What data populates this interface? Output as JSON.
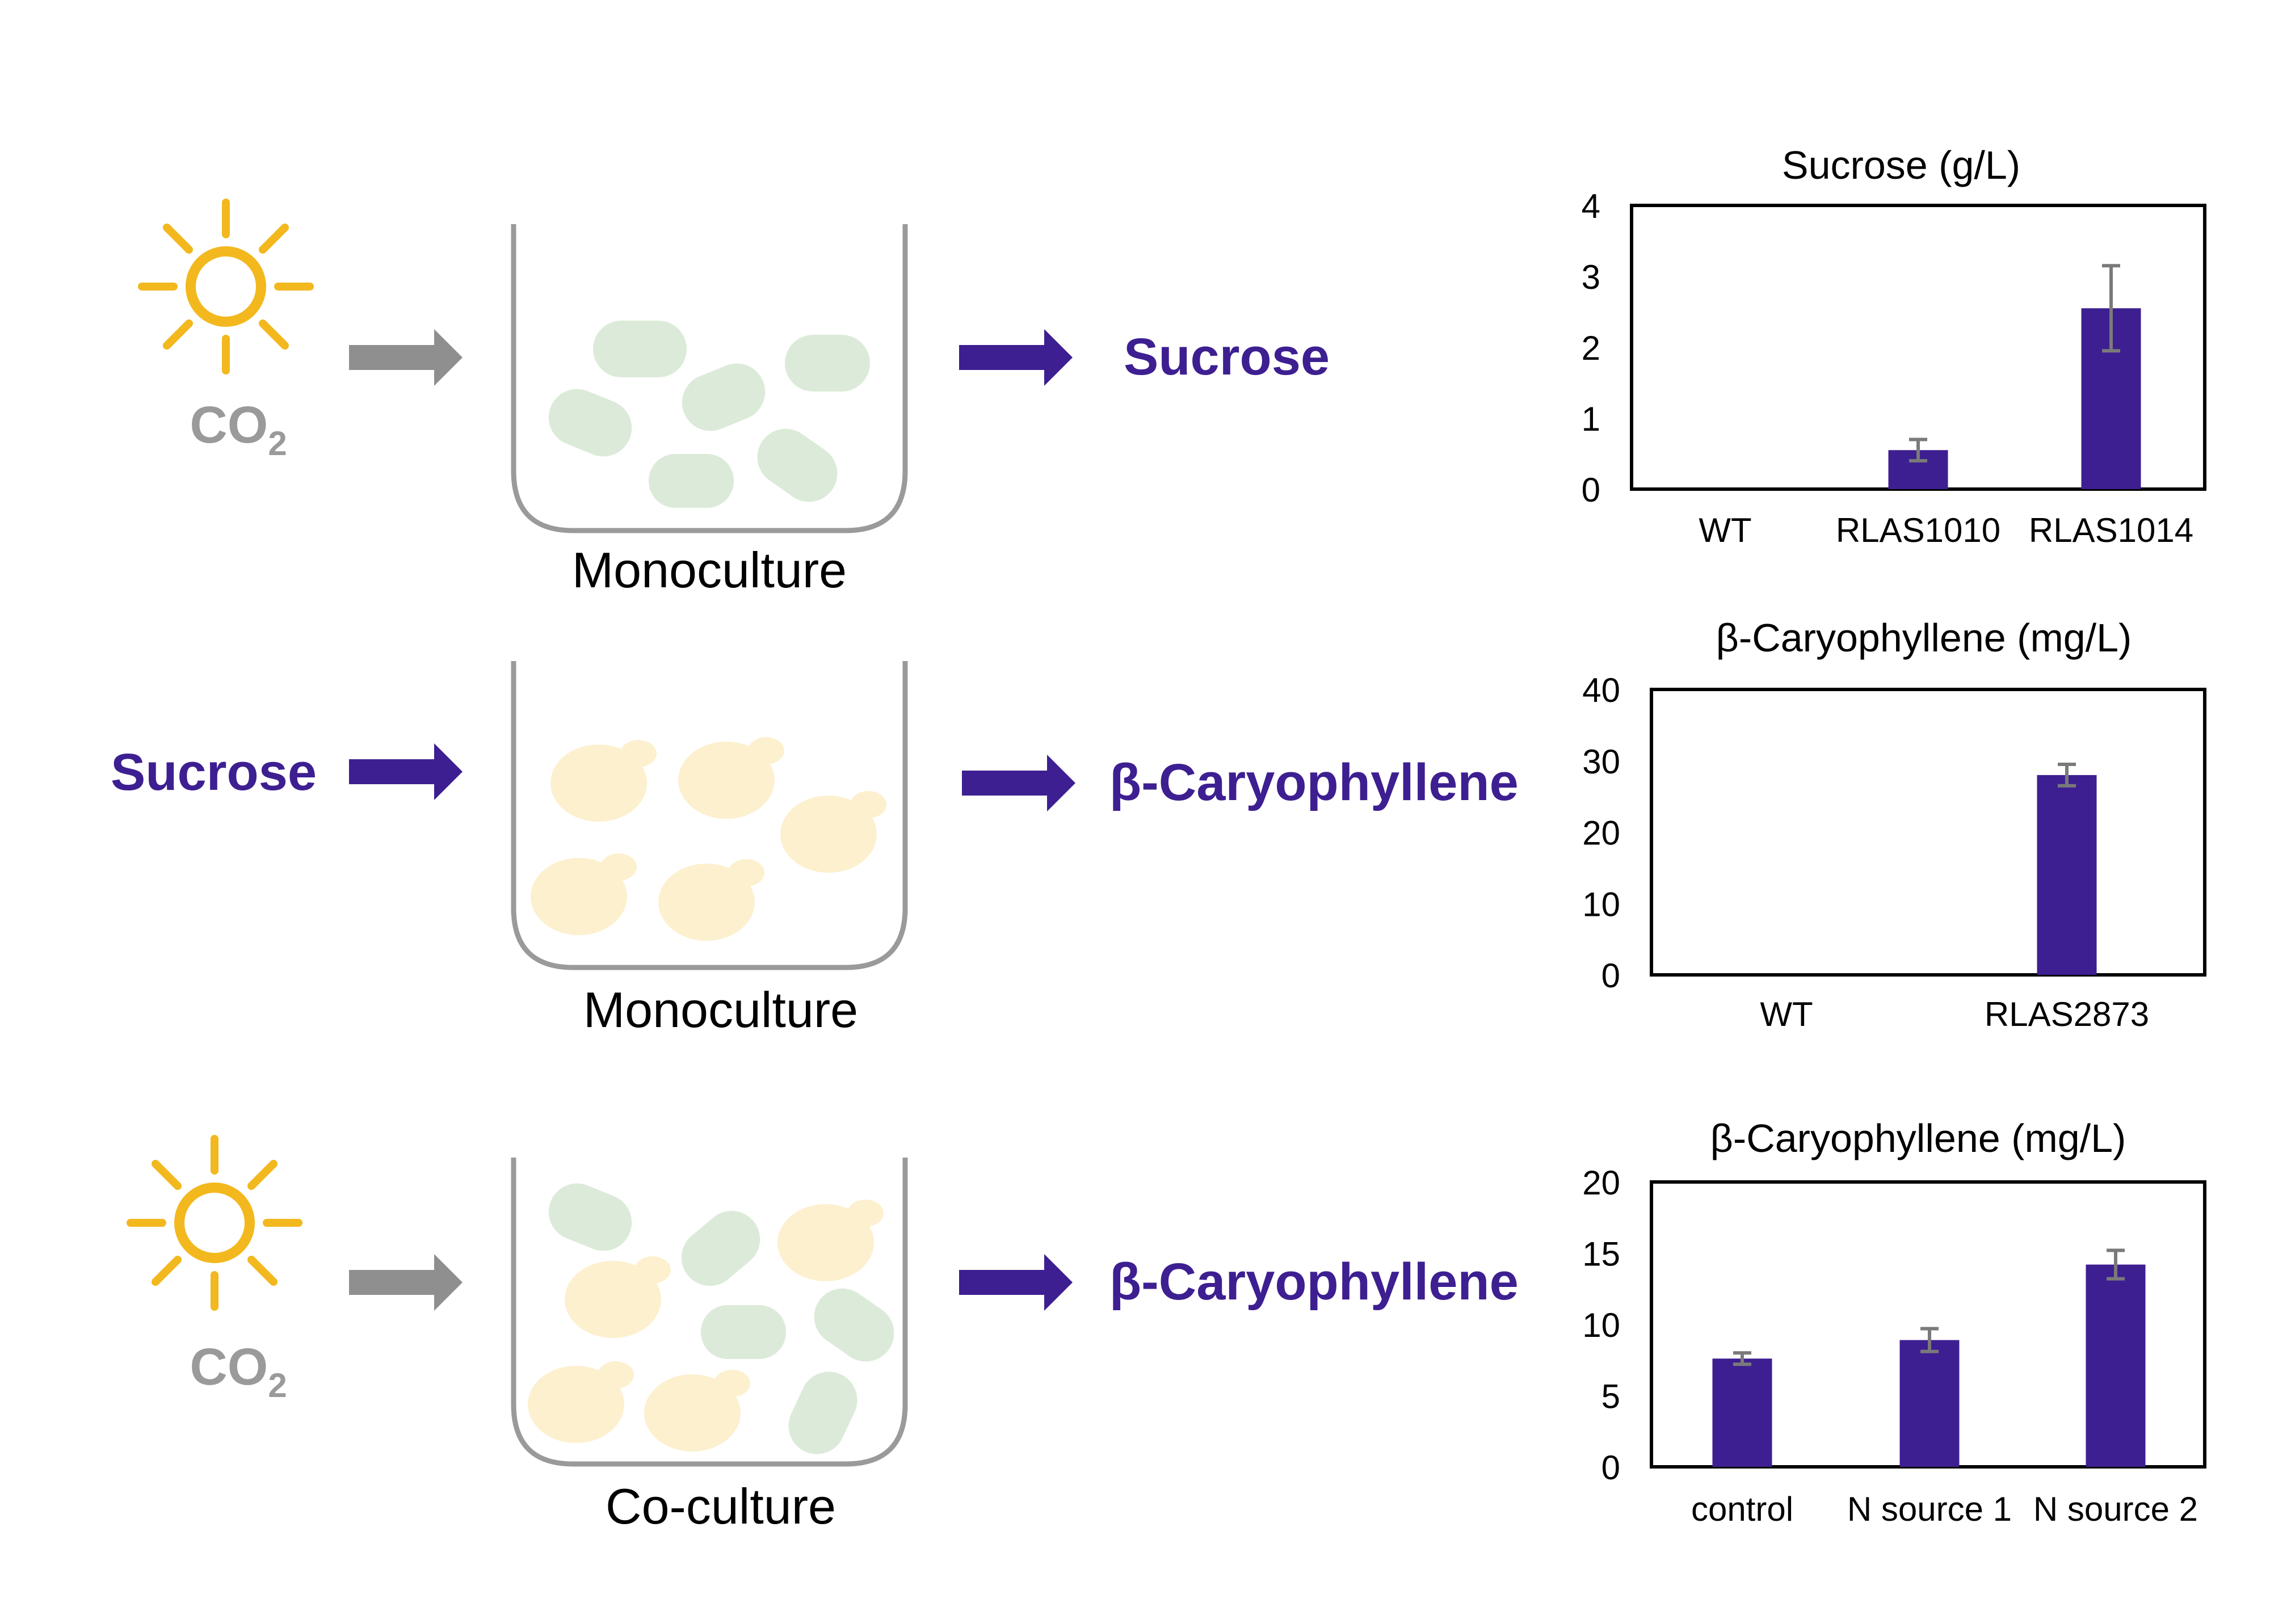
{
  "colors": {
    "purple": "#3d1f91",
    "gray_arrow": "#8f8f8f",
    "co2": "#9a9a9a",
    "sun": "#f2b81e",
    "algae": "#dcebd9",
    "yeast": "#fdf0cf",
    "vessel": "#9a9a9a"
  },
  "rows": [
    {
      "input": "CO",
      "input_sub": "2",
      "product": "Sucrose",
      "vessel_label": "Monoculture"
    },
    {
      "input": "Sucrose",
      "product": "β-Caryophyllene",
      "vessel_label": "Monoculture"
    },
    {
      "input": "CO",
      "input_sub": "2",
      "product": "β-Caryophyllene",
      "vessel_label": "Co-culture"
    }
  ],
  "chart_data": [
    {
      "type": "bar",
      "title": "Sucrose (g/L)",
      "categories": [
        "WT",
        "RLAS1010",
        "RLAS1014"
      ],
      "values": [
        0,
        0.55,
        2.55
      ],
      "errors": [
        0,
        0.15,
        0.6
      ],
      "ylim": [
        0,
        4
      ],
      "yticks": [
        "0",
        "1",
        "2",
        "3",
        "4"
      ]
    },
    {
      "type": "bar",
      "title": "β-Caryophyllene (mg/L)",
      "categories": [
        "WT",
        "RLAS2873"
      ],
      "values": [
        0,
        28
      ],
      "errors": [
        0,
        1.5
      ],
      "ylim": [
        0,
        40
      ],
      "yticks": [
        "0",
        "10",
        "20",
        "30",
        "40"
      ]
    },
    {
      "type": "bar",
      "title": "β-Caryophyllene (mg/L)",
      "categories": [
        "control",
        "N source 1",
        "N source 2"
      ],
      "values": [
        7.6,
        8.9,
        14.2
      ],
      "errors": [
        0.4,
        0.8,
        1.0
      ],
      "ylim": [
        0,
        20
      ],
      "yticks": [
        "0",
        "5",
        "10",
        "15",
        "20"
      ]
    }
  ]
}
